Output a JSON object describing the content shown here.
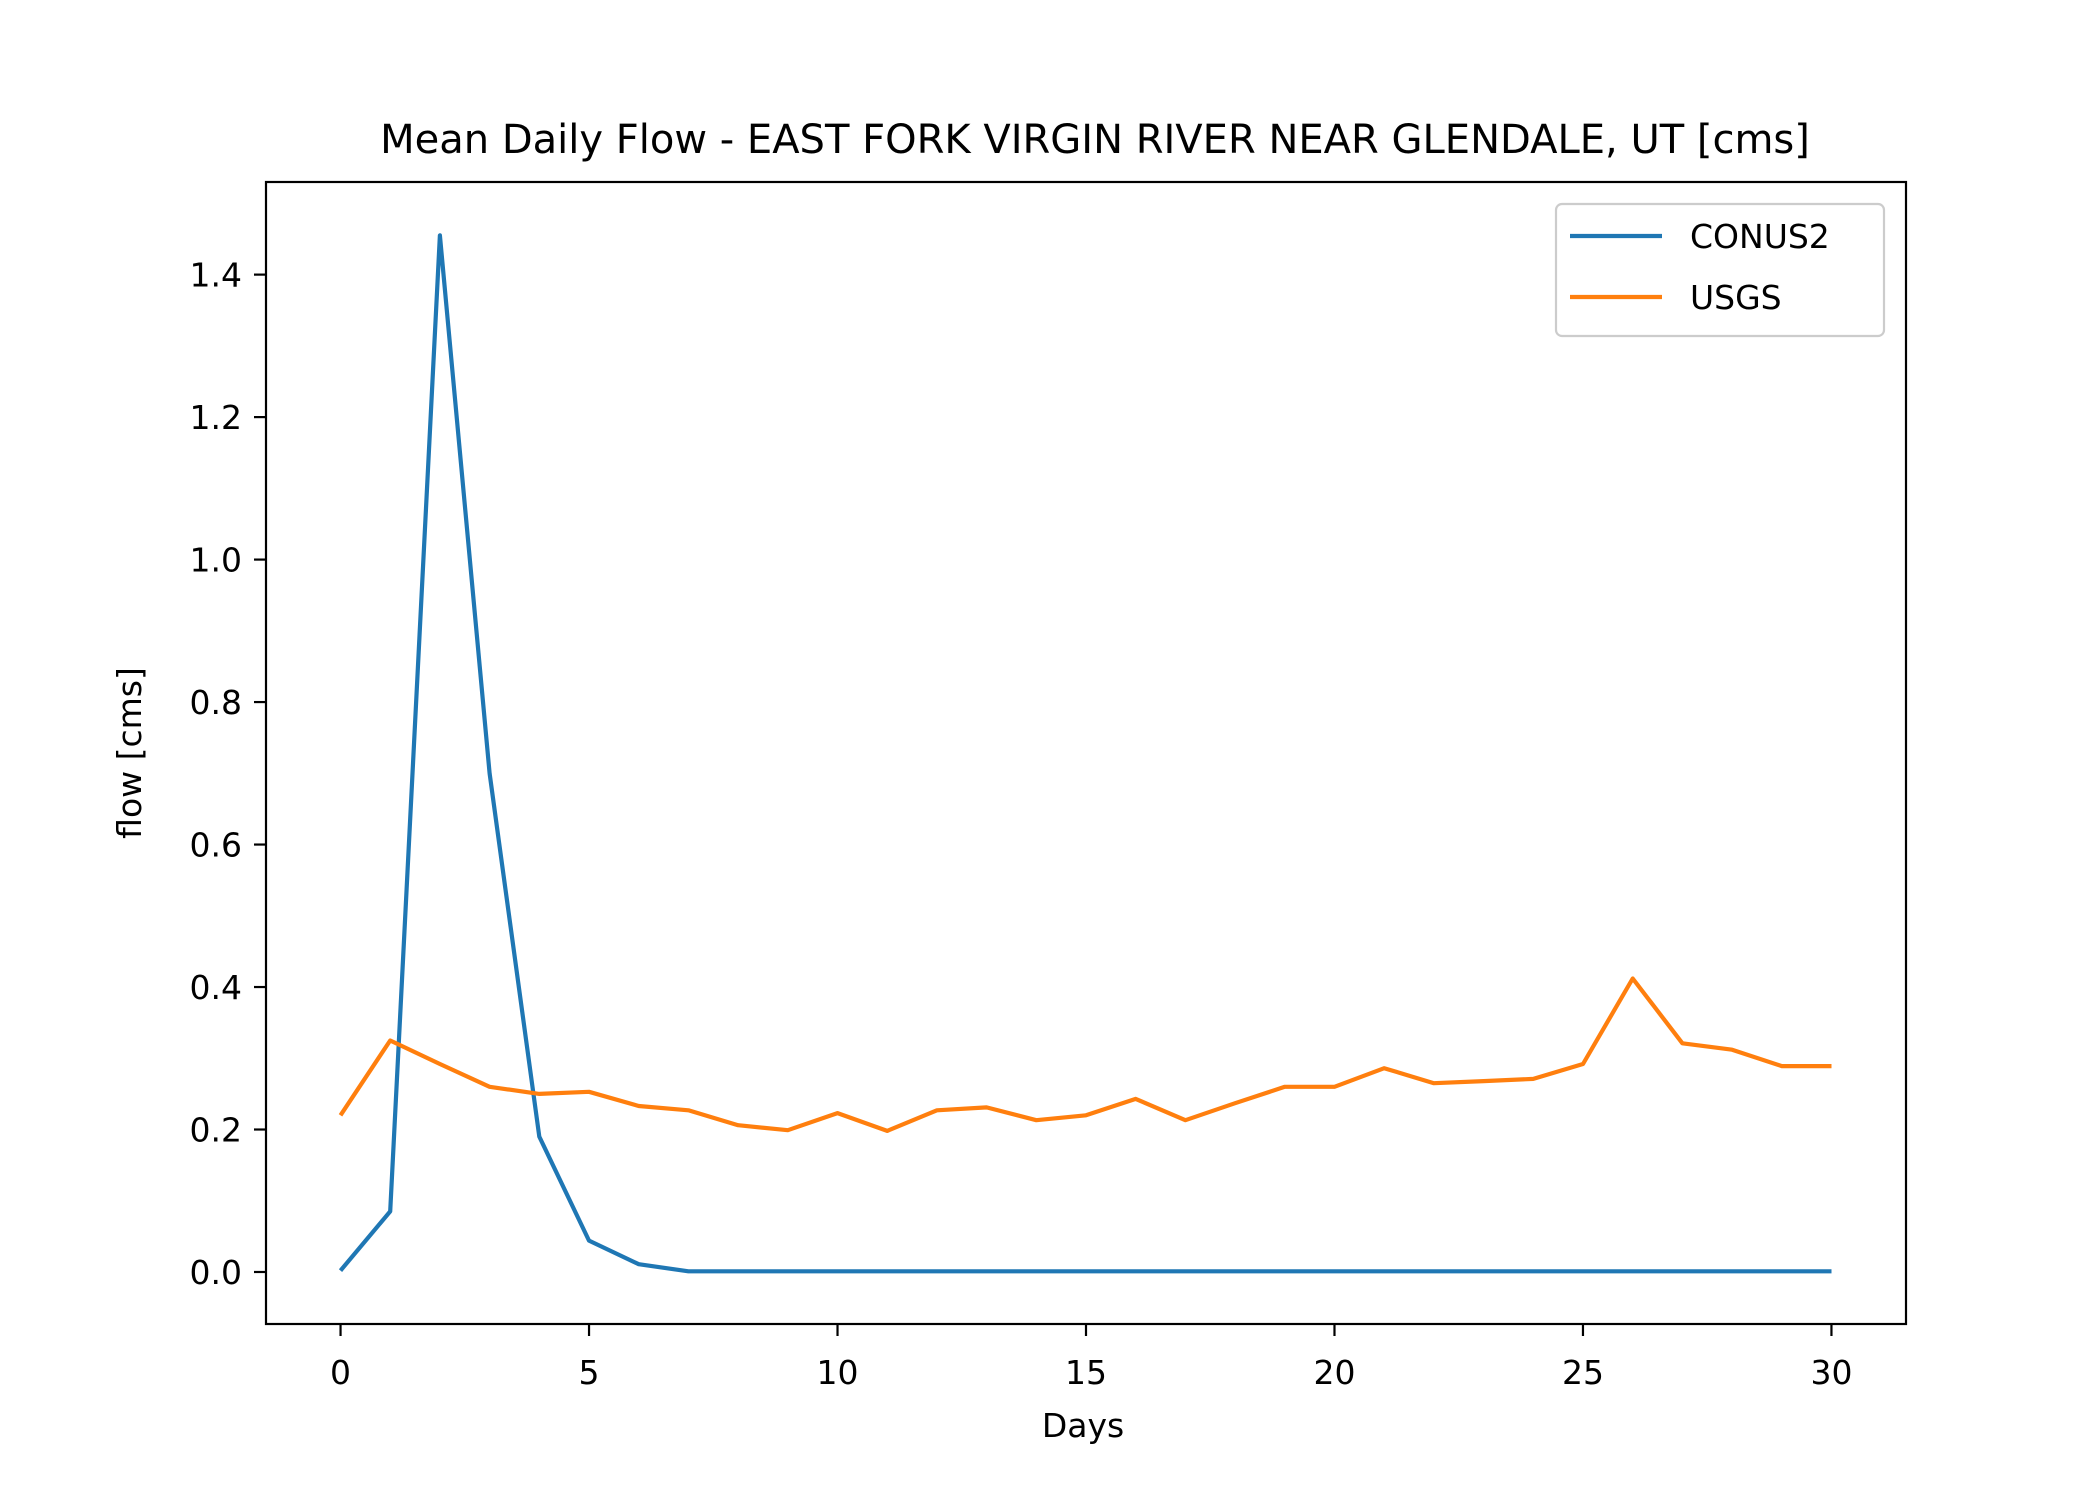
{
  "chart_data": {
    "type": "line",
    "title": "Mean Daily Flow - EAST FORK VIRGIN RIVER NEAR GLENDALE, UT [cms]",
    "xlabel": "Days",
    "ylabel": "flow [cms]",
    "xlim": [
      -1.5,
      31.5
    ],
    "ylim": [
      -0.073,
      1.53
    ],
    "xticks": [
      0,
      5,
      10,
      15,
      20,
      25,
      30
    ],
    "xtick_labels": [
      "0",
      "5",
      "10",
      "15",
      "20",
      "25",
      "30"
    ],
    "yticks": [
      0.0,
      0.2,
      0.4,
      0.6,
      0.8,
      1.0,
      1.2,
      1.4
    ],
    "ytick_labels": [
      "0.0",
      "0.2",
      "0.4",
      "0.6",
      "0.8",
      "1.0",
      "1.2",
      "1.4"
    ],
    "grid": false,
    "legend_position": "upper right",
    "x": [
      0,
      1,
      2,
      3,
      4,
      5,
      6,
      7,
      8,
      9,
      10,
      11,
      12,
      13,
      14,
      15,
      16,
      17,
      18,
      19,
      20,
      21,
      22,
      23,
      24,
      25,
      26,
      27,
      28,
      29,
      30
    ],
    "series": [
      {
        "name": "CONUS2",
        "color": "#1f77b4",
        "values": [
          0.002,
          0.085,
          1.455,
          0.7,
          0.19,
          0.044,
          0.011,
          0.001,
          0.001,
          0.001,
          0.001,
          0.001,
          0.001,
          0.001,
          0.001,
          0.001,
          0.001,
          0.001,
          0.001,
          0.001,
          0.001,
          0.001,
          0.001,
          0.001,
          0.001,
          0.001,
          0.001,
          0.001,
          0.001,
          0.001,
          0.001
        ]
      },
      {
        "name": "USGS",
        "color": "#ff7f0e",
        "values": [
          0.22,
          0.325,
          0.292,
          0.26,
          0.25,
          0.253,
          0.233,
          0.227,
          0.206,
          0.199,
          0.223,
          0.198,
          0.227,
          0.231,
          0.213,
          0.22,
          0.243,
          0.213,
          0.237,
          0.26,
          0.26,
          0.286,
          0.265,
          0.268,
          0.271,
          0.292,
          0.412,
          0.321,
          0.312,
          0.289,
          0.289
        ]
      }
    ]
  }
}
